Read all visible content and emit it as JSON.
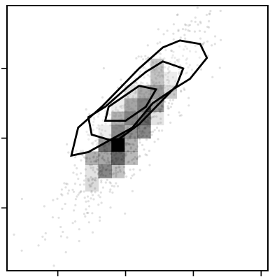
{
  "chart_data": {
    "type": "scatter",
    "title": "",
    "xlabel": "",
    "ylabel": "",
    "xlim": [
      -3.5,
      4.2
    ],
    "ylim": [
      -3.8,
      3.8
    ],
    "grid": false,
    "legend": "none",
    "x_ticks": [
      -2,
      0,
      2,
      4
    ],
    "y_ticks": [
      -2,
      0,
      2
    ],
    "colors": {
      "points": "#9a9a9a",
      "density_fill": "#000000",
      "contour": "#000000",
      "axes": "#000000",
      "background": "#ffffff"
    },
    "series": [
      {
        "kind": "scatter",
        "count": 1000,
        "correlation": 0.85,
        "x_mean": 0.2,
        "x_std": 1.0,
        "y_mean": 0.5,
        "y_std": 1.35,
        "opacity": 0.3
      },
      {
        "kind": "density_hist2d",
        "bins": 20,
        "levels": [
          0.3,
          0.6,
          0.85
        ]
      }
    ],
    "contours": [
      {
        "level": 0.3,
        "polygon": [
          [
            1.6,
            2.8
          ],
          [
            2.2,
            2.7
          ],
          [
            2.4,
            2.3
          ],
          [
            1.9,
            1.7
          ],
          [
            1.4,
            1.4
          ],
          [
            0.8,
            1.0
          ],
          [
            0.2,
            0.3
          ],
          [
            -1.1,
            -0.4
          ],
          [
            -1.6,
            -0.5
          ],
          [
            -1.4,
            0.3
          ],
          [
            -0.7,
            0.9
          ],
          [
            -0.1,
            1.5
          ],
          [
            0.4,
            2.0
          ],
          [
            1.1,
            2.6
          ]
        ]
      },
      {
        "level": 0.6,
        "polygon": [
          [
            1.1,
            2.2
          ],
          [
            1.7,
            2.0
          ],
          [
            1.5,
            1.5
          ],
          [
            1.0,
            1.0
          ],
          [
            0.4,
            0.4
          ],
          [
            -0.3,
            -0.1
          ],
          [
            -1.0,
            0.1
          ],
          [
            -1.1,
            0.6
          ],
          [
            -0.6,
            0.9
          ],
          [
            0.1,
            1.5
          ],
          [
            0.6,
            1.9
          ]
        ]
      },
      {
        "level": 0.85,
        "polygon": [
          [
            0.4,
            1.5
          ],
          [
            0.9,
            1.4
          ],
          [
            0.6,
            0.9
          ],
          [
            0.0,
            0.5
          ],
          [
            -0.6,
            0.5
          ],
          [
            -0.5,
            0.9
          ],
          [
            0.1,
            1.3
          ]
        ]
      }
    ]
  }
}
